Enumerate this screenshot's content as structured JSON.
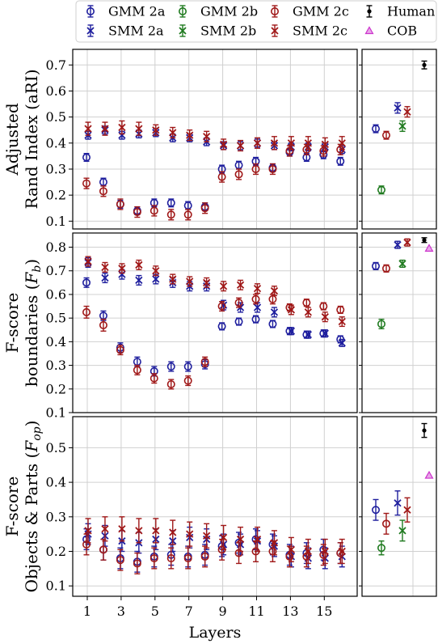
{
  "legend": [
    {
      "label": "GMM 2a",
      "color": "#1f1f9e",
      "marker": "circle"
    },
    {
      "label": "GMM 2b",
      "color": "#1f7a1f",
      "marker": "circle"
    },
    {
      "label": "GMM 2c",
      "color": "#a01818",
      "marker": "circle"
    },
    {
      "label": "Human",
      "color": "#000000",
      "marker": "dot"
    },
    {
      "label": "SMM 2a",
      "color": "#1f1f9e",
      "marker": "x"
    },
    {
      "label": "SMM 2b",
      "color": "#1f7a1f",
      "marker": "x"
    },
    {
      "label": "SMM 2c",
      "color": "#a01818",
      "marker": "x"
    },
    {
      "label": "COB",
      "color": "#cc33cc",
      "marker": "triangle"
    }
  ],
  "chart_data": [
    {
      "type": "scatter",
      "ylabel_lines": [
        "Adjusted",
        "Rand Index (aRI)"
      ],
      "ylim": [
        0.07,
        0.76
      ],
      "yticks": [
        0.1,
        0.2,
        0.3,
        0.4,
        0.5,
        0.6,
        0.7
      ],
      "grid": true,
      "layers": [
        1,
        2,
        3,
        4,
        5,
        6,
        7,
        8,
        9,
        10,
        11,
        12,
        13,
        14,
        15,
        16
      ],
      "series": [
        {
          "name": "GMM 2a",
          "color": "#1f1f9e",
          "marker": "circle",
          "values": [
            0.345,
            0.25,
            0.165,
            0.14,
            0.17,
            0.17,
            0.16,
            0.155,
            0.3,
            0.315,
            0.33,
            0.305,
            0.365,
            0.345,
            0.355,
            0.33
          ],
          "err": [
            0.015,
            0.015,
            0.015,
            0.015,
            0.015,
            0.015,
            0.015,
            0.015,
            0.015,
            0.015,
            0.015,
            0.015,
            0.015,
            0.015,
            0.015,
            0.015
          ]
        },
        {
          "name": "SMM 2a",
          "color": "#1f1f9e",
          "marker": "x",
          "values": [
            0.43,
            0.45,
            0.43,
            0.435,
            0.44,
            0.42,
            0.42,
            0.405,
            0.39,
            0.39,
            0.4,
            0.39,
            0.385,
            0.385,
            0.385,
            0.375
          ],
          "err": [
            0.015,
            0.015,
            0.015,
            0.015,
            0.015,
            0.015,
            0.015,
            0.015,
            0.015,
            0.015,
            0.015,
            0.015,
            0.015,
            0.015,
            0.015,
            0.015
          ]
        },
        {
          "name": "GMM 2c",
          "color": "#a01818",
          "marker": "circle",
          "values": [
            0.245,
            0.215,
            0.165,
            0.135,
            0.14,
            0.125,
            0.125,
            0.15,
            0.27,
            0.28,
            0.3,
            0.3,
            0.37,
            0.375,
            0.37,
            0.375
          ],
          "err": [
            0.02,
            0.02,
            0.02,
            0.02,
            0.02,
            0.02,
            0.02,
            0.02,
            0.02,
            0.02,
            0.02,
            0.02,
            0.02,
            0.02,
            0.02,
            0.02
          ]
        },
        {
          "name": "SMM 2c",
          "color": "#a01818",
          "marker": "x",
          "values": [
            0.455,
            0.455,
            0.46,
            0.455,
            0.45,
            0.44,
            0.43,
            0.425,
            0.395,
            0.39,
            0.4,
            0.4,
            0.4,
            0.4,
            0.395,
            0.4
          ],
          "err": [
            0.025,
            0.025,
            0.025,
            0.025,
            0.02,
            0.02,
            0.02,
            0.02,
            0.02,
            0.02,
            0.02,
            0.025,
            0.025,
            0.025,
            0.025,
            0.025
          ]
        }
      ],
      "summary": [
        {
          "name": "GMM 2a",
          "value": 0.455,
          "err": 0.015
        },
        {
          "name": "GMM 2b",
          "value": 0.22,
          "err": 0.015
        },
        {
          "name": "GMM 2c",
          "value": 0.43,
          "err": 0.015
        },
        {
          "name": "SMM 2a",
          "value": 0.535,
          "err": 0.02
        },
        {
          "name": "SMM 2b",
          "value": 0.465,
          "err": 0.02
        },
        {
          "name": "SMM 2c",
          "value": 0.52,
          "err": 0.02
        },
        {
          "name": "Human",
          "value": 0.7,
          "err": 0.015
        }
      ]
    },
    {
      "type": "scatter",
      "ylabel_lines": [
        "F-score",
        "boundaries (F_b)"
      ],
      "ylim": [
        0.1,
        0.86
      ],
      "yticks": [
        0.1,
        0.2,
        0.3,
        0.4,
        0.5,
        0.6,
        0.7,
        0.8
      ],
      "grid": true,
      "layers": [
        1,
        2,
        3,
        4,
        5,
        6,
        7,
        8,
        9,
        10,
        11,
        12,
        13,
        14,
        15,
        16
      ],
      "series": [
        {
          "name": "GMM 2a",
          "color": "#1f1f9e",
          "marker": "circle",
          "values": [
            0.65,
            0.51,
            0.375,
            0.315,
            0.275,
            0.295,
            0.295,
            0.305,
            0.465,
            0.485,
            0.495,
            0.475,
            0.445,
            0.43,
            0.435,
            0.41
          ],
          "err": [
            0.02,
            0.02,
            0.02,
            0.02,
            0.02,
            0.02,
            0.02,
            0.02,
            0.015,
            0.015,
            0.015,
            0.015,
            0.015,
            0.015,
            0.015,
            0.015
          ]
        },
        {
          "name": "SMM 2a",
          "color": "#1f1f9e",
          "marker": "x",
          "values": [
            0.735,
            0.67,
            0.685,
            0.66,
            0.665,
            0.65,
            0.635,
            0.635,
            0.555,
            0.545,
            0.545,
            0.525,
            0.445,
            0.43,
            0.435,
            0.395
          ],
          "err": [
            0.02,
            0.02,
            0.02,
            0.02,
            0.02,
            0.02,
            0.02,
            0.02,
            0.02,
            0.02,
            0.02,
            0.02,
            0.015,
            0.015,
            0.015,
            0.015
          ]
        },
        {
          "name": "GMM 2c",
          "color": "#a01818",
          "marker": "circle",
          "values": [
            0.525,
            0.47,
            0.365,
            0.28,
            0.245,
            0.22,
            0.235,
            0.315,
            0.55,
            0.565,
            0.58,
            0.58,
            0.545,
            0.565,
            0.55,
            0.535
          ],
          "err": [
            0.025,
            0.025,
            0.02,
            0.02,
            0.02,
            0.02,
            0.02,
            0.02,
            0.02,
            0.02,
            0.02,
            0.02,
            0.015,
            0.015,
            0.015,
            0.015
          ]
        },
        {
          "name": "SMM 2c",
          "color": "#a01818",
          "marker": "x",
          "values": [
            0.74,
            0.715,
            0.71,
            0.725,
            0.7,
            0.665,
            0.655,
            0.65,
            0.635,
            0.64,
            0.625,
            0.615,
            0.535,
            0.525,
            0.505,
            0.485
          ],
          "err": [
            0.02,
            0.02,
            0.02,
            0.02,
            0.02,
            0.02,
            0.02,
            0.02,
            0.02,
            0.02,
            0.02,
            0.02,
            0.02,
            0.02,
            0.02,
            0.02
          ]
        }
      ],
      "summary": [
        {
          "name": "GMM 2a",
          "value": 0.72,
          "err": 0.015
        },
        {
          "name": "GMM 2b",
          "value": 0.475,
          "err": 0.02
        },
        {
          "name": "GMM 2c",
          "value": 0.71,
          "err": 0.015
        },
        {
          "name": "SMM 2a",
          "value": 0.81,
          "err": 0.015
        },
        {
          "name": "SMM 2b",
          "value": 0.73,
          "err": 0.015
        },
        {
          "name": "SMM 2c",
          "value": 0.82,
          "err": 0.015
        },
        {
          "name": "Human",
          "value": 0.83,
          "err": 0.01
        },
        {
          "name": "COB",
          "value": 0.795,
          "err": 0
        }
      ]
    },
    {
      "type": "scatter",
      "ylabel_lines": [
        "F-score",
        "Objects & Parts (F_op)"
      ],
      "ylim": [
        0.07,
        0.59
      ],
      "yticks": [
        0.1,
        0.2,
        0.3,
        0.4,
        0.5
      ],
      "grid": true,
      "xlabel": "Layers",
      "xticks": [
        1,
        3,
        5,
        7,
        9,
        11,
        13,
        15
      ],
      "layers": [
        1,
        2,
        3,
        4,
        5,
        6,
        7,
        8,
        9,
        10,
        11,
        12,
        13,
        14,
        15,
        16
      ],
      "series": [
        {
          "name": "GMM 2a",
          "color": "#1f1f9e",
          "marker": "circle",
          "values": [
            0.235,
            0.205,
            0.18,
            0.17,
            0.185,
            0.19,
            0.185,
            0.19,
            0.215,
            0.225,
            0.235,
            0.22,
            0.19,
            0.195,
            0.205,
            0.195
          ],
          "err": [
            0.03,
            0.03,
            0.03,
            0.03,
            0.03,
            0.03,
            0.03,
            0.03,
            0.03,
            0.03,
            0.03,
            0.03,
            0.03,
            0.03,
            0.03,
            0.03
          ]
        },
        {
          "name": "SMM 2a",
          "color": "#1f1f9e",
          "marker": "x",
          "values": [
            0.25,
            0.245,
            0.23,
            0.225,
            0.235,
            0.23,
            0.24,
            0.235,
            0.22,
            0.22,
            0.23,
            0.215,
            0.185,
            0.18,
            0.18,
            0.185
          ],
          "err": [
            0.03,
            0.03,
            0.03,
            0.03,
            0.03,
            0.03,
            0.03,
            0.03,
            0.03,
            0.03,
            0.03,
            0.03,
            0.03,
            0.03,
            0.03,
            0.03
          ]
        },
        {
          "name": "GMM 2c",
          "color": "#a01818",
          "marker": "circle",
          "values": [
            0.22,
            0.205,
            0.175,
            0.165,
            0.18,
            0.18,
            0.18,
            0.185,
            0.205,
            0.195,
            0.2,
            0.2,
            0.185,
            0.185,
            0.19,
            0.195
          ],
          "err": [
            0.03,
            0.03,
            0.03,
            0.03,
            0.03,
            0.03,
            0.03,
            0.03,
            0.03,
            0.03,
            0.03,
            0.03,
            0.03,
            0.03,
            0.03,
            0.03
          ]
        },
        {
          "name": "SMM 2c",
          "color": "#a01818",
          "marker": "x",
          "values": [
            0.26,
            0.265,
            0.265,
            0.26,
            0.26,
            0.255,
            0.25,
            0.245,
            0.24,
            0.235,
            0.235,
            0.225,
            0.205,
            0.2,
            0.2,
            0.2
          ],
          "err": [
            0.035,
            0.035,
            0.035,
            0.035,
            0.035,
            0.035,
            0.035,
            0.035,
            0.035,
            0.035,
            0.035,
            0.035,
            0.035,
            0.035,
            0.035,
            0.035
          ]
        }
      ],
      "summary": [
        {
          "name": "GMM 2a",
          "value": 0.32,
          "err": 0.03
        },
        {
          "name": "GMM 2b",
          "value": 0.21,
          "err": 0.02
        },
        {
          "name": "GMM 2c",
          "value": 0.28,
          "err": 0.03
        },
        {
          "name": "SMM 2a",
          "value": 0.34,
          "err": 0.035
        },
        {
          "name": "SMM 2b",
          "value": 0.26,
          "err": 0.03
        },
        {
          "name": "SMM 2c",
          "value": 0.32,
          "err": 0.035
        },
        {
          "name": "Human",
          "value": 0.55,
          "err": 0.02
        },
        {
          "name": "COB",
          "value": 0.42,
          "err": 0
        }
      ]
    }
  ]
}
